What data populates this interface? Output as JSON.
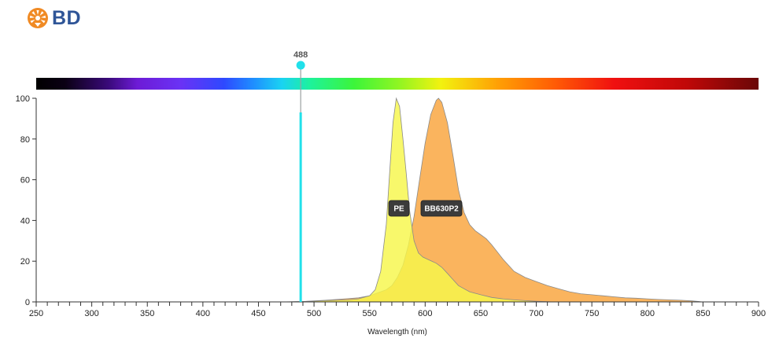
{
  "brand": {
    "name": "BD",
    "icon": "bd-starburst-logo",
    "color": "#2f5597",
    "icon_color": "#f08a24"
  },
  "chart_data": {
    "type": "area",
    "xlabel": "Wavelength (nm)",
    "ylabel": "",
    "xlim": [
      250,
      900
    ],
    "ylim": [
      0,
      100
    ],
    "x_ticks": [
      250,
      300,
      350,
      400,
      450,
      500,
      550,
      600,
      650,
      700,
      750,
      800,
      850,
      900
    ],
    "y_ticks": [
      0,
      20,
      40,
      60,
      80,
      100
    ],
    "laser": {
      "wavelength": 488,
      "label": "488",
      "color": "#21e0ea"
    },
    "spectrum_bar": true,
    "series": [
      {
        "name": "PE",
        "color": "#f7f74a",
        "x": [
          475,
          490,
          500,
          510,
          520,
          530,
          540,
          550,
          555,
          560,
          565,
          568,
          571,
          574,
          577,
          580,
          583,
          586,
          590,
          594,
          598,
          602,
          606,
          610,
          615,
          620,
          625,
          630,
          640,
          650,
          660,
          670,
          680,
          690,
          700,
          710,
          715
        ],
        "values": [
          0,
          0.2,
          0.4,
          0.6,
          0.8,
          1,
          1.5,
          3,
          6,
          15,
          38,
          63,
          88,
          100,
          96,
          80,
          63,
          45,
          30,
          24,
          22,
          21,
          20,
          19,
          17,
          14,
          11,
          8,
          5,
          3.5,
          2.2,
          1.5,
          1,
          0.6,
          0.3,
          0.1,
          0
        ]
      },
      {
        "name": "BB630P2",
        "color": "#f9a33a",
        "x": [
          470,
          490,
          500,
          510,
          520,
          530,
          540,
          550,
          560,
          565,
          570,
          575,
          580,
          585,
          590,
          595,
          600,
          605,
          610,
          612,
          615,
          620,
          625,
          630,
          635,
          640,
          645,
          650,
          655,
          660,
          670,
          680,
          690,
          700,
          710,
          720,
          730,
          740,
          750,
          760,
          770,
          780,
          790,
          800,
          810,
          820,
          830,
          840,
          850
        ],
        "values": [
          0,
          0.2,
          0.5,
          0.8,
          1.2,
          1.6,
          2,
          3,
          5,
          6,
          8,
          12,
          18,
          28,
          42,
          60,
          78,
          92,
          99,
          100,
          98,
          88,
          72,
          55,
          44,
          38,
          35,
          33,
          31,
          28,
          21,
          15,
          12,
          10,
          8,
          6.5,
          5,
          4,
          3.5,
          3,
          2.5,
          2,
          1.8,
          1.5,
          1.2,
          1,
          0.8,
          0.5,
          0
        ]
      }
    ],
    "tags": [
      "PE",
      "BB630P2"
    ]
  }
}
